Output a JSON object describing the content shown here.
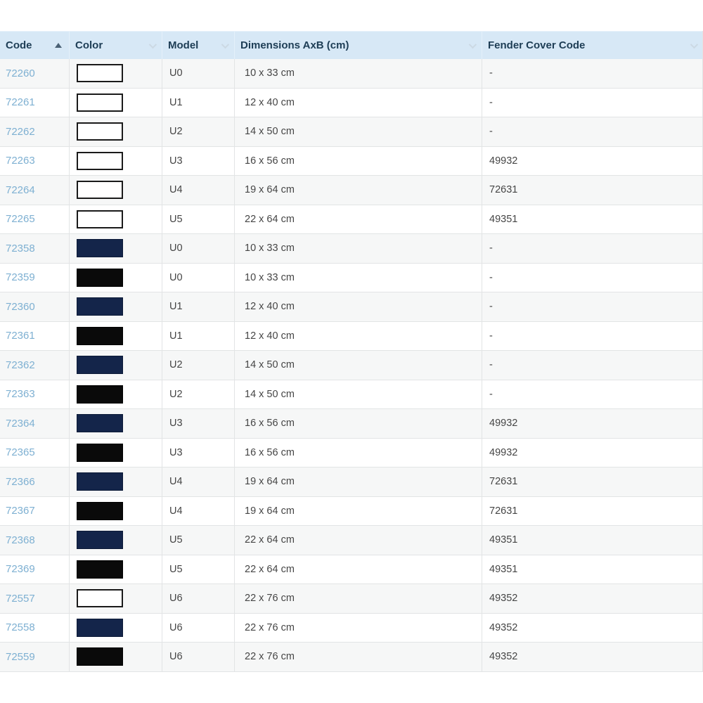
{
  "theme": {
    "header_bg": "#d7e8f6",
    "header_text": "#1d3d55",
    "link_color": "#7eb0d2",
    "body_text": "#454545",
    "row_alt_bg": "#f6f7f7",
    "border_color": "#e2e4e5",
    "sort_asc_color": "#4a6175",
    "sort_inactive_color": "#ccd9e4",
    "swatch_white": "#ffffff",
    "swatch_navy": "#14254a",
    "swatch_black": "#0a0a0a"
  },
  "table": {
    "header": {
      "columns": [
        {
          "id": "code",
          "label": "Code",
          "sort": "asc"
        },
        {
          "id": "color",
          "label": "Color",
          "sort": "none"
        },
        {
          "id": "model",
          "label": "Model",
          "sort": "none"
        },
        {
          "id": "dimensions",
          "label": "Dimensions AxB (cm)",
          "sort": "none"
        },
        {
          "id": "fender",
          "label": "Fender Cover Code",
          "sort": "none"
        }
      ]
    },
    "rows": [
      {
        "code": "72260",
        "color_name": "white",
        "swatch_fill": "#ffffff",
        "swatch_border": "#1a1a1a",
        "model": "U0",
        "dimensions": "10 x 33 cm",
        "fender_cover_code": "-"
      },
      {
        "code": "72261",
        "color_name": "white",
        "swatch_fill": "#ffffff",
        "swatch_border": "#1a1a1a",
        "model": "U1",
        "dimensions": "12 x 40 cm",
        "fender_cover_code": "-"
      },
      {
        "code": "72262",
        "color_name": "white",
        "swatch_fill": "#ffffff",
        "swatch_border": "#1a1a1a",
        "model": "U2",
        "dimensions": "14 x 50 cm",
        "fender_cover_code": "-"
      },
      {
        "code": "72263",
        "color_name": "white",
        "swatch_fill": "#ffffff",
        "swatch_border": "#1a1a1a",
        "model": "U3",
        "dimensions": "16 x 56 cm",
        "fender_cover_code": "49932"
      },
      {
        "code": "72264",
        "color_name": "white",
        "swatch_fill": "#ffffff",
        "swatch_border": "#1a1a1a",
        "model": "U4",
        "dimensions": "19 x 64 cm",
        "fender_cover_code": "72631"
      },
      {
        "code": "72265",
        "color_name": "white",
        "swatch_fill": "#ffffff",
        "swatch_border": "#1a1a1a",
        "model": "U5",
        "dimensions": "22 x 64 cm",
        "fender_cover_code": "49351"
      },
      {
        "code": "72358",
        "color_name": "navy",
        "swatch_fill": "#14254a",
        "swatch_border": "#0d1b38",
        "model": "U0",
        "dimensions": "10 x 33 cm",
        "fender_cover_code": "-"
      },
      {
        "code": "72359",
        "color_name": "black",
        "swatch_fill": "#0a0a0a",
        "swatch_border": "#000000",
        "model": "U0",
        "dimensions": "10 x 33 cm",
        "fender_cover_code": "-"
      },
      {
        "code": "72360",
        "color_name": "navy",
        "swatch_fill": "#14254a",
        "swatch_border": "#0d1b38",
        "model": "U1",
        "dimensions": "12 x 40 cm",
        "fender_cover_code": "-"
      },
      {
        "code": "72361",
        "color_name": "black",
        "swatch_fill": "#0a0a0a",
        "swatch_border": "#000000",
        "model": "U1",
        "dimensions": "12 x 40 cm",
        "fender_cover_code": "-"
      },
      {
        "code": "72362",
        "color_name": "navy",
        "swatch_fill": "#14254a",
        "swatch_border": "#0d1b38",
        "model": "U2",
        "dimensions": "14 x 50 cm",
        "fender_cover_code": "-"
      },
      {
        "code": "72363",
        "color_name": "black",
        "swatch_fill": "#0a0a0a",
        "swatch_border": "#000000",
        "model": "U2",
        "dimensions": "14 x 50 cm",
        "fender_cover_code": "-"
      },
      {
        "code": "72364",
        "color_name": "navy",
        "swatch_fill": "#14254a",
        "swatch_border": "#0d1b38",
        "model": "U3",
        "dimensions": "16 x 56 cm",
        "fender_cover_code": "49932"
      },
      {
        "code": "72365",
        "color_name": "black",
        "swatch_fill": "#0a0a0a",
        "swatch_border": "#000000",
        "model": "U3",
        "dimensions": "16 x 56 cm",
        "fender_cover_code": "49932"
      },
      {
        "code": "72366",
        "color_name": "navy",
        "swatch_fill": "#14254a",
        "swatch_border": "#0d1b38",
        "model": "U4",
        "dimensions": "19 x 64 cm",
        "fender_cover_code": "72631"
      },
      {
        "code": "72367",
        "color_name": "black",
        "swatch_fill": "#0a0a0a",
        "swatch_border": "#000000",
        "model": "U4",
        "dimensions": "19 x 64 cm",
        "fender_cover_code": "72631"
      },
      {
        "code": "72368",
        "color_name": "navy",
        "swatch_fill": "#14254a",
        "swatch_border": "#0d1b38",
        "model": "U5",
        "dimensions": "22 x 64 cm",
        "fender_cover_code": "49351"
      },
      {
        "code": "72369",
        "color_name": "black",
        "swatch_fill": "#0a0a0a",
        "swatch_border": "#000000",
        "model": "U5",
        "dimensions": "22 x 64 cm",
        "fender_cover_code": "49351"
      },
      {
        "code": "72557",
        "color_name": "white",
        "swatch_fill": "#ffffff",
        "swatch_border": "#1a1a1a",
        "model": "U6",
        "dimensions": "22 x 76 cm",
        "fender_cover_code": "49352"
      },
      {
        "code": "72558",
        "color_name": "navy",
        "swatch_fill": "#14254a",
        "swatch_border": "#0d1b38",
        "model": "U6",
        "dimensions": "22 x 76 cm",
        "fender_cover_code": "49352"
      },
      {
        "code": "72559",
        "color_name": "black",
        "swatch_fill": "#0a0a0a",
        "swatch_border": "#000000",
        "model": "U6",
        "dimensions": "22 x 76 cm",
        "fender_cover_code": "49352"
      }
    ]
  }
}
